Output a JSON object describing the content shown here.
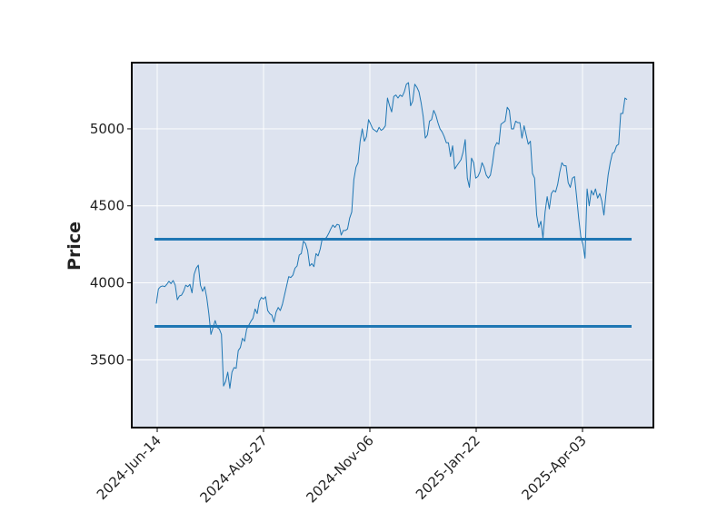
{
  "chart_data": {
    "type": "line",
    "title": "",
    "xlabel": "",
    "ylabel": "Price",
    "x_tick_labels": [
      "2024-Jun-14",
      "2024-Aug-27",
      "2024-Nov-06",
      "2025-Jan-22",
      "2025-Apr-03"
    ],
    "y_ticks": [
      3500,
      4000,
      4500,
      5000
    ],
    "ylim": [
      3060,
      5430
    ],
    "grid": true,
    "legend": "none",
    "colors": {
      "line": "#1f77b4",
      "plot_background": "#dde3ef",
      "grid": "#ffffff",
      "frame": "#000000"
    },
    "series": [
      {
        "values": [
          3865,
          3960,
          3975,
          3980,
          3975,
          3990,
          4010,
          3995,
          4015,
          3985,
          3890,
          3915,
          3920,
          3945,
          3985,
          3975,
          3990,
          3935,
          4055,
          4095,
          4115,
          3985,
          3945,
          3975,
          3905,
          3800,
          3665,
          3710,
          3755,
          3710,
          3700,
          3665,
          3330,
          3360,
          3420,
          3315,
          3420,
          3450,
          3445,
          3560,
          3580,
          3640,
          3620,
          3700,
          3725,
          3750,
          3770,
          3830,
          3800,
          3880,
          3905,
          3895,
          3910,
          3820,
          3800,
          3790,
          3745,
          3810,
          3840,
          3820,
          3860,
          3920,
          3980,
          4040,
          4035,
          4050,
          4095,
          4110,
          4180,
          4190,
          4270,
          4255,
          4210,
          4110,
          4125,
          4105,
          4190,
          4175,
          4220,
          4290,
          4285,
          4295,
          4320,
          4350,
          4375,
          4360,
          4380,
          4375,
          4310,
          4340,
          4340,
          4350,
          4420,
          4460,
          4670,
          4750,
          4780,
          4920,
          5000,
          4920,
          4950,
          5060,
          5030,
          5000,
          4990,
          4980,
          5010,
          4990,
          5000,
          5020,
          5200,
          5150,
          5110,
          5210,
          5220,
          5200,
          5220,
          5210,
          5240,
          5290,
          5300,
          5150,
          5180,
          5290,
          5270,
          5240,
          5170,
          5080,
          4940,
          4960,
          5050,
          5060,
          5120,
          5090,
          5040,
          5000,
          4980,
          4950,
          4910,
          4910,
          4820,
          4890,
          4740,
          4760,
          4780,
          4800,
          4850,
          4930,
          4680,
          4620,
          4810,
          4780,
          4680,
          4690,
          4720,
          4780,
          4750,
          4700,
          4680,
          4700,
          4780,
          4880,
          4910,
          4900,
          5030,
          5040,
          5050,
          5140,
          5120,
          5000,
          5000,
          5050,
          5040,
          5040,
          4940,
          5020,
          4960,
          4900,
          4920,
          4710,
          4680,
          4440,
          4360,
          4400,
          4290,
          4460,
          4560,
          4480,
          4580,
          4600,
          4590,
          4640,
          4720,
          4780,
          4760,
          4760,
          4650,
          4620,
          4680,
          4690,
          4560,
          4420,
          4300,
          4250,
          4160,
          4610,
          4500,
          4600,
          4570,
          4610,
          4550,
          4580,
          4530,
          4440,
          4580,
          4700,
          4780,
          4840,
          4850,
          4890,
          4900,
          5100,
          5100,
          5200,
          5190
        ],
        "reference_lines": [
          4283,
          3717
        ]
      }
    ]
  }
}
